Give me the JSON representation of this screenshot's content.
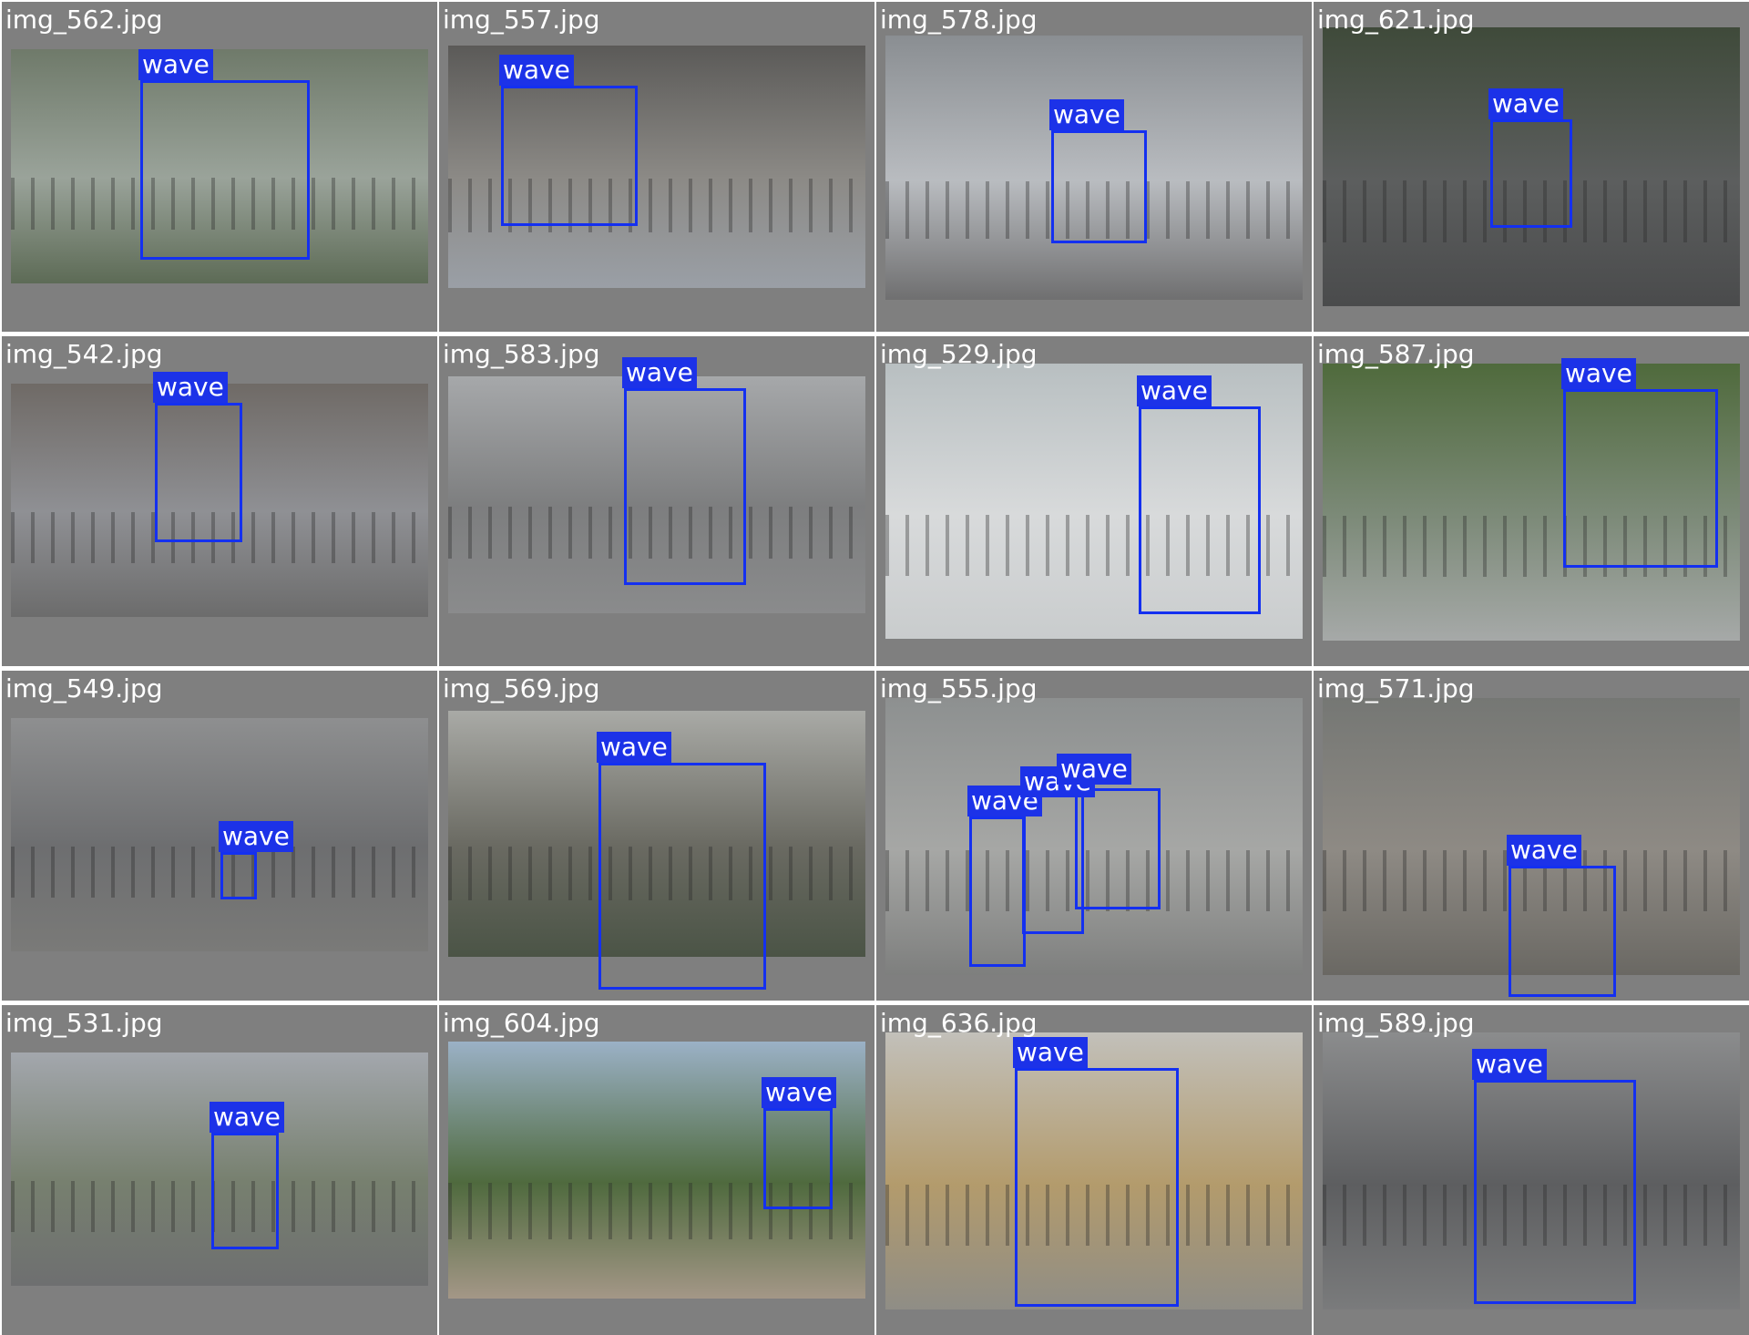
{
  "colors": {
    "cell_background": "#7f7f7f",
    "bbox": "#1430f0",
    "label_background": "#1c32e8",
    "label_text": "#ffffff"
  },
  "cells": [
    {
      "filename": "img_562.jpg",
      "scene": [
        "#6f7a6a",
        "#9aa39a",
        "#5d6b56"
      ],
      "detections": [
        {
          "label": "wave"
        }
      ]
    },
    {
      "filename": "img_557.jpg",
      "scene": [
        "#5b5a58",
        "#8c8a86",
        "#9a9fa6"
      ],
      "detections": [
        {
          "label": "wave"
        }
      ]
    },
    {
      "filename": "img_578.jpg",
      "scene": [
        "#8a8e92",
        "#b9bcc0",
        "#6f6f70"
      ],
      "detections": [
        {
          "label": "wave"
        }
      ]
    },
    {
      "filename": "img_621.jpg",
      "scene": [
        "#3f4a3a",
        "#5c5e5e",
        "#4a4b4c"
      ],
      "detections": [
        {
          "label": "wave"
        }
      ]
    },
    {
      "filename": "img_542.jpg",
      "scene": [
        "#6f6a66",
        "#8f9094",
        "#6c6c6c"
      ],
      "detections": [
        {
          "label": "wave"
        }
      ]
    },
    {
      "filename": "img_583.jpg",
      "scene": [
        "#a6a8aa",
        "#7d7e7f",
        "#8a8b8c"
      ],
      "detections": [
        {
          "label": "wave"
        }
      ]
    },
    {
      "filename": "img_529.jpg",
      "scene": [
        "#b8bfc1",
        "#d8dadb",
        "#c9cccd"
      ],
      "detections": [
        {
          "label": "wave"
        }
      ]
    },
    {
      "filename": "img_587.jpg",
      "scene": [
        "#4f6a3c",
        "#7c8a78",
        "#a6a9a8"
      ],
      "detections": [
        {
          "label": "wave"
        }
      ]
    },
    {
      "filename": "img_549.jpg",
      "scene": [
        "#8e8f90",
        "#6d6e70",
        "#7a7a78"
      ],
      "detections": [
        {
          "label": "wave"
        }
      ]
    },
    {
      "filename": "img_569.jpg",
      "scene": [
        "#a9aaa6",
        "#6a6a62",
        "#4b5446"
      ],
      "detections": [
        {
          "label": "wave"
        }
      ]
    },
    {
      "filename": "img_555.jpg",
      "scene": [
        "#8d9090",
        "#a6a7a5",
        "#7e7f7e"
      ],
      "detections": [
        {
          "label": "wave"
        },
        {
          "label": "wave"
        },
        {
          "label": "wave"
        }
      ]
    },
    {
      "filename": "img_571.jpg",
      "scene": [
        "#757774",
        "#8e8a84",
        "#6a6863"
      ],
      "detections": [
        {
          "label": "wave"
        }
      ]
    },
    {
      "filename": "img_531.jpg",
      "scene": [
        "#a3a7ad",
        "#77806f",
        "#6e6f70"
      ],
      "detections": [
        {
          "label": "wave"
        }
      ]
    },
    {
      "filename": "img_604.jpg",
      "scene": [
        "#9bb1c6",
        "#4f6a3e",
        "#a49787"
      ],
      "detections": [
        {
          "label": "wave"
        }
      ]
    },
    {
      "filename": "img_636.jpg",
      "scene": [
        "#c2c0ba",
        "#b39b6c",
        "#8f8d86"
      ],
      "detections": [
        {
          "label": "wave"
        }
      ]
    },
    {
      "filename": "img_589.jpg",
      "scene": [
        "#8b8c8d",
        "#5d5e60",
        "#7a7b7c"
      ],
      "detections": [
        {
          "label": "wave"
        }
      ]
    }
  ]
}
